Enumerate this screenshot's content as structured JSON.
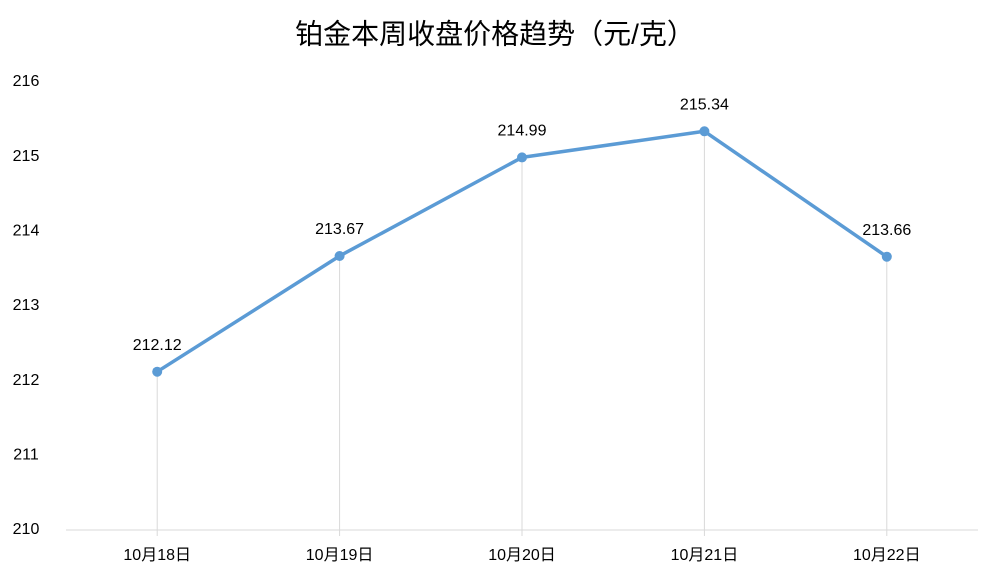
{
  "chart_data": {
    "type": "line",
    "title": "铂金本周收盘价格趋势（元/克）",
    "categories": [
      "10月18日",
      "10月19日",
      "10月20日",
      "10月21日",
      "10月22日"
    ],
    "values": [
      212.12,
      213.67,
      214.99,
      215.34,
      213.66
    ],
    "color": "#5b9bd5",
    "ylim": [
      210,
      216
    ],
    "yticks": [
      210,
      211,
      212,
      213,
      214,
      215,
      216
    ],
    "drop_lines": true
  }
}
